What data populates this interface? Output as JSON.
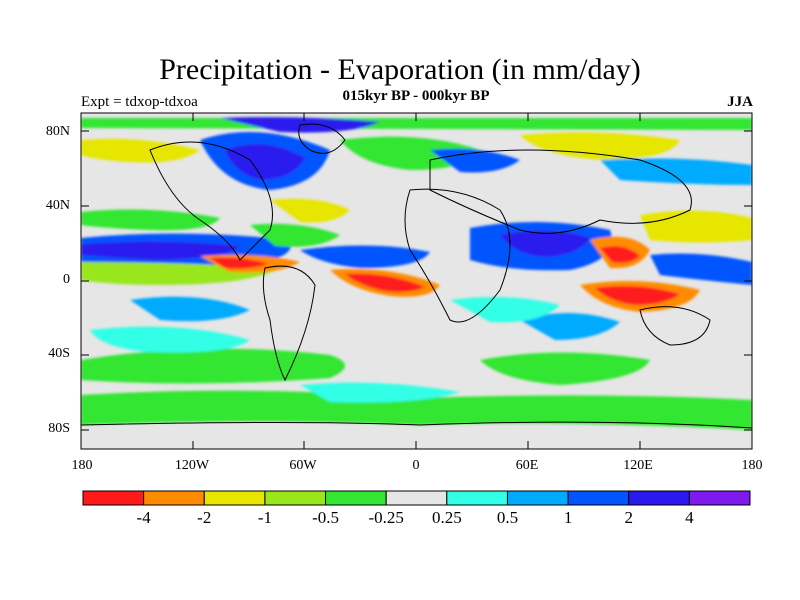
{
  "title": "Precipitation - Evaporation (in mm/day)",
  "subtitle": "015kyr BP - 000kyr BP",
  "experiment": "Expt = tdxop-tdxoa",
  "season": "JJA",
  "lat_ticks": [
    "80N",
    "40N",
    "0",
    "40S",
    "80S"
  ],
  "lon_ticks": [
    "180",
    "120W",
    "60W",
    "0",
    "60E",
    "120E",
    "180"
  ],
  "colorbar": {
    "colors": [
      "#ff1a1a",
      "#ff8c00",
      "#e6e600",
      "#99e61a",
      "#33e633",
      "#e6e6e6",
      "#33ffe6",
      "#00aaff",
      "#0055ff",
      "#2a1aee",
      "#7f1aee"
    ],
    "labels": [
      "-4",
      "-2",
      "-1",
      "-0.5",
      "-0.25",
      "0.25",
      "0.5",
      "1",
      "2",
      "4"
    ]
  }
}
